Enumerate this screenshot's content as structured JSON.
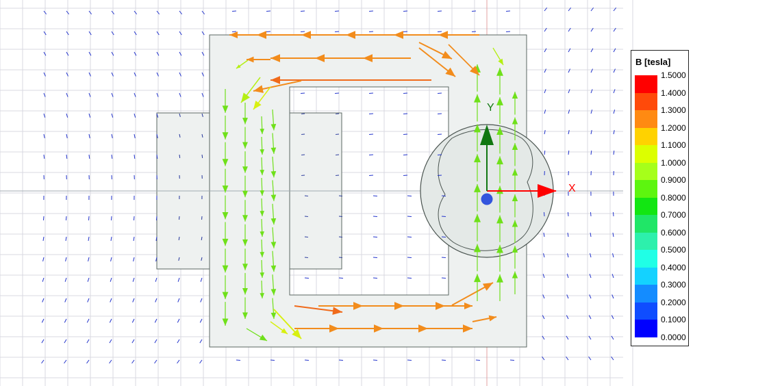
{
  "axes": {
    "x_label": "X",
    "y_label": "Y"
  },
  "legend": {
    "title": "B [tesla]",
    "ticks": [
      "1.5000",
      "1.4000",
      "1.3000",
      "1.2000",
      "1.1000",
      "1.0000",
      "0.9000",
      "0.8000",
      "0.7000",
      "0.6000",
      "0.5000",
      "0.4000",
      "0.3000",
      "0.2000",
      "0.1000",
      "0.0000"
    ],
    "colors": [
      "#ff0000",
      "#ff4a0a",
      "#ff8a12",
      "#ffd200",
      "#dcff00",
      "#a6ff1a",
      "#5df50f",
      "#12e612",
      "#20e667",
      "#2df0ac",
      "#20ffe6",
      "#14d2ff",
      "#148cff",
      "#0f4dff",
      "#0000ff"
    ]
  },
  "colors": {
    "grid": "#d9d9e0",
    "core_fill": "#eef1f0",
    "core_edge": "#5a6662",
    "x_axis": "#ff0000",
    "y_axis": "#117711",
    "origin": "#3355dd"
  }
}
